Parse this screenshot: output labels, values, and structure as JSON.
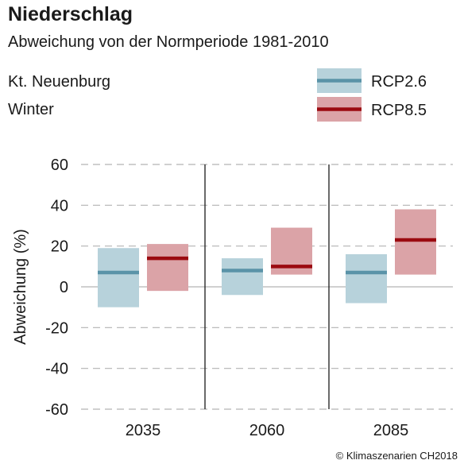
{
  "title": "Niederschlag",
  "subtitle": "Abweichung von der Normperiode 1981-2010",
  "region": "Kt. Neuenburg",
  "season": "Winter",
  "copyright": "© Klimaszenarien CH2018",
  "colors": {
    "rcp26_fill": "#b7d2db",
    "rcp26_line": "#5a93a8",
    "rcp85_fill": "#dba3a7",
    "rcp85_line": "#9b0a10",
    "grid": "#b3b3b3",
    "zero_line": "#b3b3b3",
    "divider": "#1a1a1a"
  },
  "chart_data": {
    "type": "box",
    "ylabel": "Abweichung (%)",
    "ylim": [
      -60,
      60
    ],
    "yticks": [
      60,
      40,
      20,
      0,
      -20,
      -40,
      -60
    ],
    "grid": "dashed horizontal",
    "legend_position": "top-right",
    "categories": [
      "2035",
      "2060",
      "2085"
    ],
    "series": [
      {
        "name": "RCP2.6",
        "color_key": "rcp26",
        "low": [
          -10,
          -4,
          -8
        ],
        "median": [
          7,
          8,
          7
        ],
        "high": [
          19,
          14,
          16
        ]
      },
      {
        "name": "RCP8.5",
        "color_key": "rcp85",
        "low": [
          -2,
          6,
          6
        ],
        "median": [
          14,
          10,
          23
        ],
        "high": [
          21,
          29,
          38
        ]
      }
    ]
  }
}
